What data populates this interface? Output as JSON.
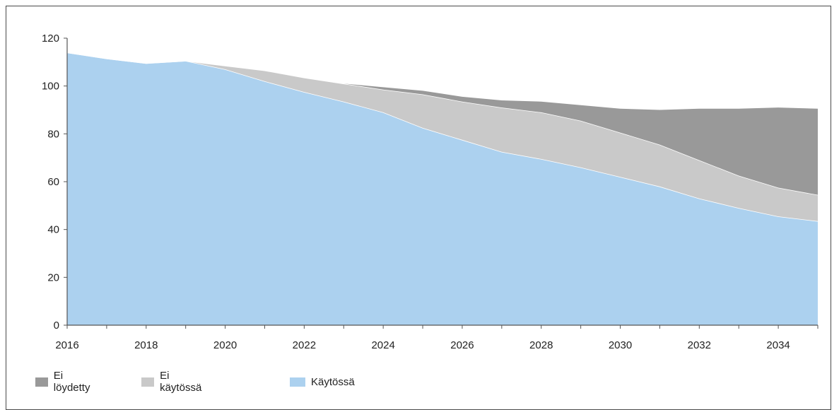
{
  "chart_data": {
    "type": "area",
    "stacked": true,
    "x": [
      2016,
      2017,
      2018,
      2019,
      2020,
      2021,
      2022,
      2023,
      2024,
      2025,
      2026,
      2027,
      2028,
      2029,
      2030,
      2031,
      2032,
      2033,
      2034,
      2035
    ],
    "series": [
      {
        "name": "Käytössä",
        "color": "#acd1ef",
        "values": [
          114,
          111.5,
          109.5,
          110.5,
          107,
          102,
          97.5,
          93.5,
          89,
          82.5,
          77.5,
          72.5,
          69.5,
          66,
          62,
          58,
          53,
          49,
          45.5,
          43.5
        ]
      },
      {
        "name": "Ei käytössä",
        "color": "#c9c9c9",
        "values": [
          0,
          0,
          0,
          0,
          1.5,
          4.5,
          6,
          7.5,
          9.5,
          14,
          16,
          18.5,
          19.5,
          19.5,
          18.5,
          17.5,
          16,
          13.5,
          12,
          11
        ]
      },
      {
        "name": "Ei löydetty",
        "color": "#999999",
        "values": [
          0,
          0,
          0,
          0,
          0,
          0,
          0,
          0,
          1,
          1.5,
          2,
          3,
          4.5,
          6.5,
          10,
          14.5,
          21.5,
          28,
          33.5,
          36
        ]
      }
    ],
    "ylim": [
      0,
      120
    ],
    "yticks": [
      "0",
      "20",
      "40",
      "60",
      "80",
      "100",
      "120"
    ],
    "xticks": [
      "2016",
      "2018",
      "2020",
      "2022",
      "2024",
      "2026",
      "2028",
      "2030",
      "2032",
      "2034"
    ],
    "xlim": [
      2016,
      2035
    ],
    "grid": false,
    "legend_position": "bottom-left",
    "legend": [
      "Ei löydetty",
      "Ei käytössä",
      "Käytössä"
    ]
  }
}
